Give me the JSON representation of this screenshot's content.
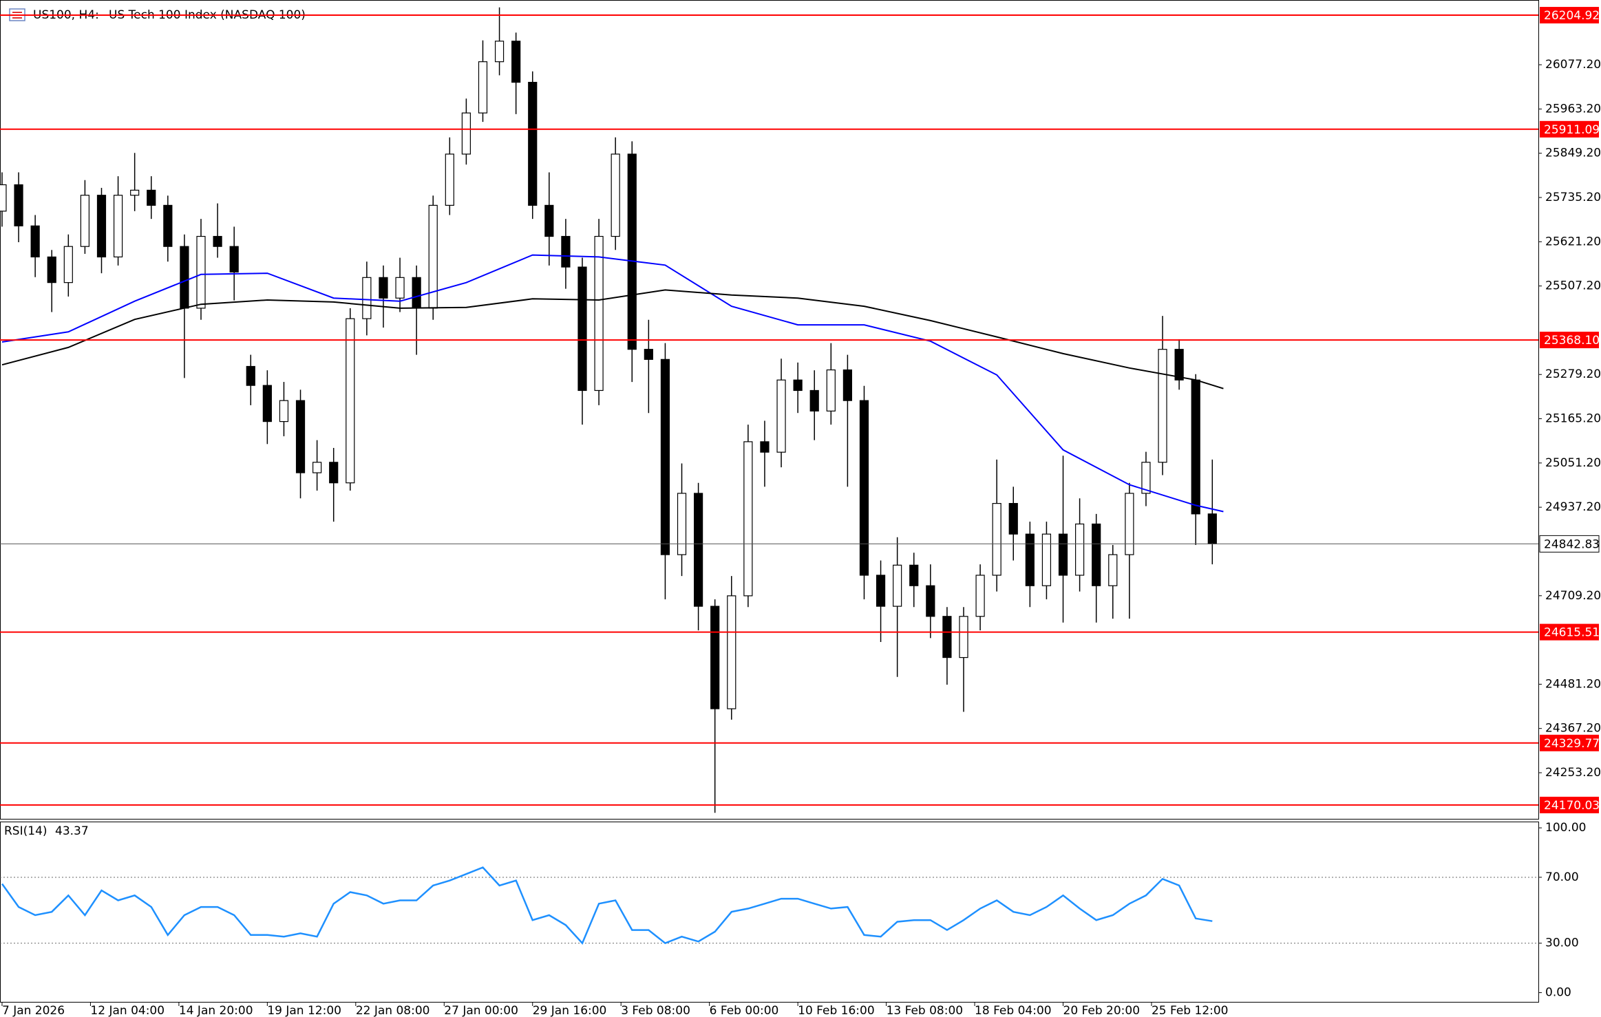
{
  "chart_data": [
    {
      "type": "candlestick",
      "symbol": "US100, H4:",
      "title": "US Tech 100 Index (NASDAQ 100)",
      "x": [
        0,
        3,
        6,
        9,
        12,
        15,
        18,
        21,
        24,
        27,
        30,
        33,
        36,
        39,
        42,
        45,
        48,
        51,
        54,
        57,
        60,
        63,
        66,
        69,
        72,
        75,
        78,
        81,
        84,
        87,
        90,
        93,
        96,
        99,
        102,
        105,
        108,
        111,
        114,
        117,
        120,
        123,
        126,
        129,
        132,
        135,
        138,
        141,
        144,
        147,
        150,
        153,
        156,
        159,
        162,
        165,
        168,
        171,
        174,
        177,
        180,
        183,
        186,
        189,
        192,
        195,
        198,
        201,
        204,
        207,
        210,
        213,
        216,
        219
      ],
      "open": [
        25700,
        25768,
        25662,
        25582,
        25516,
        25609,
        25741,
        25582,
        25741,
        25754,
        25715,
        25609,
        25450,
        25635,
        25609,
        25300,
        25251,
        25158,
        25212,
        25026,
        25053,
        25000,
        25423,
        25529,
        25476,
        25529,
        25450,
        25715,
        25847,
        25953,
        26085,
        26138,
        26032,
        25715,
        25635,
        25556,
        25238,
        25635,
        25847,
        25344,
        25318,
        24815,
        24973,
        24682,
        24418,
        24709,
        25106,
        25079,
        25265,
        25238,
        25185,
        25291,
        25212,
        24762,
        24682,
        24788,
        24735,
        24656,
        24550,
        24656,
        24762,
        24947,
        24868,
        24735,
        24868,
        24762,
        24894,
        24735,
        24815,
        24973,
        25053,
        25344,
        25265,
        24920
      ],
      "high": [
        25800,
        25800,
        25690,
        25600,
        25640,
        25780,
        25760,
        25790,
        25850,
        25790,
        25740,
        25640,
        25680,
        25720,
        25660,
        25330,
        25290,
        25260,
        25240,
        25110,
        25090,
        25450,
        25570,
        25560,
        25580,
        25560,
        25740,
        25890,
        25990,
        26140,
        26225,
        26160,
        26060,
        25800,
        25680,
        25580,
        25680,
        25890,
        25880,
        25420,
        25360,
        25050,
        25000,
        24700,
        24760,
        25150,
        25160,
        25320,
        25310,
        25290,
        25360,
        25330,
        25250,
        24800,
        24860,
        24820,
        24790,
        24680,
        24680,
        24790,
        25060,
        24990,
        24900,
        24900,
        25070,
        24960,
        24920,
        24840,
        25000,
        25080,
        25430,
        25370,
        25280,
        25060
      ],
      "low": [
        25660,
        25620,
        25530,
        25440,
        25480,
        25590,
        25540,
        25560,
        25700,
        25680,
        25570,
        25270,
        25420,
        25580,
        25470,
        25200,
        25100,
        25120,
        24960,
        24980,
        24900,
        24980,
        25380,
        25400,
        25440,
        25330,
        25420,
        25690,
        25820,
        25930,
        26050,
        25950,
        25680,
        25560,
        25500,
        25150,
        25200,
        25600,
        25260,
        25180,
        24700,
        24760,
        24620,
        24150,
        24390,
        24680,
        24990,
        25040,
        25180,
        25110,
        25150,
        24990,
        24700,
        24590,
        24500,
        24680,
        24600,
        24480,
        24410,
        24620,
        24720,
        24800,
        24680,
        24700,
        24640,
        24720,
        24640,
        24650,
        24650,
        24940,
        25020,
        25240,
        24840,
        24790
      ],
      "close": [
        25768,
        25662,
        25582,
        25516,
        25609,
        25741,
        25582,
        25741,
        25754,
        25715,
        25609,
        25450,
        25635,
        25609,
        25543,
        25251,
        25158,
        25212,
        25026,
        25053,
        25000,
        25423,
        25529,
        25476,
        25529,
        25450,
        25715,
        25847,
        25953,
        26085,
        26138,
        26032,
        25715,
        25635,
        25556,
        25238,
        25635,
        25847,
        25344,
        25318,
        24815,
        24973,
        24682,
        24418,
        24709,
        25106,
        25079,
        25265,
        25238,
        25185,
        25291,
        25212,
        24762,
        24682,
        24788,
        24735,
        24656,
        24550,
        24656,
        24762,
        24947,
        24868,
        24735,
        24868,
        24762,
        24894,
        24735,
        24815,
        24973,
        25053,
        25344,
        25265,
        24920,
        24842.83
      ],
      "up_color": "#ffffff",
      "down_color": "#000000",
      "series": [
        {
          "color": "#0000ff",
          "x": [
            0,
            12,
            24,
            36,
            48,
            60,
            72,
            84,
            96,
            108,
            120,
            132,
            144,
            156,
            168,
            180,
            192,
            204,
            216,
            221
          ],
          "values": [
            25363,
            25389,
            25468,
            25537,
            25540,
            25476,
            25468,
            25516,
            25587,
            25582,
            25561,
            25455,
            25407,
            25407,
            25365,
            25278,
            25085,
            24995,
            24942,
            24926
          ]
        },
        {
          "color": "#000000",
          "x": [
            0,
            12,
            24,
            36,
            48,
            60,
            72,
            84,
            96,
            108,
            120,
            132,
            144,
            156,
            168,
            180,
            192,
            204,
            216,
            221
          ],
          "values": [
            25304,
            25349,
            25421,
            25460,
            25471,
            25466,
            25450,
            25452,
            25474,
            25471,
            25497,
            25484,
            25476,
            25455,
            25418,
            25376,
            25333,
            25296,
            25265,
            25243
          ]
        }
      ],
      "levels": [
        26204.92,
        25911.09,
        {
          "value": 25368.1,
          "label": "25368.10"
        },
        24615.51,
        24329.77,
        24170.03
      ],
      "level_color": "#ff0000",
      "last_price": 24842.83,
      "xlim": [
        -0.37,
        278
      ],
      "xticks": [
        {
          "value": 0,
          "label": "7 Jan 2026"
        },
        {
          "value": 16,
          "label": "12 Jan 04:00"
        },
        {
          "value": 32,
          "label": "14 Jan 20:00"
        },
        {
          "value": 48,
          "label": "19 Jan 12:00"
        },
        {
          "value": 64,
          "label": "22 Jan 08:00"
        },
        {
          "value": 80,
          "label": "27 Jan 00:00"
        },
        {
          "value": 96,
          "label": "29 Jan 16:00"
        },
        {
          "value": 112,
          "label": "3 Feb 08:00"
        },
        {
          "value": 128,
          "label": "6 Feb 00:00"
        },
        {
          "value": 144,
          "label": "10 Feb 16:00"
        },
        {
          "value": 160,
          "label": "13 Feb 08:00"
        },
        {
          "value": 176,
          "label": "18 Feb 04:00"
        },
        {
          "value": 192,
          "label": "20 Feb 20:00"
        },
        {
          "value": 208,
          "label": "25 Feb 12:00"
        }
      ],
      "ylim": [
        24134.4,
        26244
      ],
      "yticks": [
        {
          "value": 24253.2,
          "label": "24253.20"
        },
        {
          "value": 24367.2,
          "label": "24367.20"
        },
        {
          "value": 24481.2,
          "label": "24481.20"
        },
        {
          "value": 24709.2,
          "label": "24709.20"
        },
        {
          "value": 24937.2,
          "label": "24937.20"
        },
        {
          "value": 25051.2,
          "label": "25051.20"
        },
        {
          "value": 25165.2,
          "label": "25165.20"
        },
        {
          "value": 25279.2,
          "label": "25279.20"
        },
        {
          "value": 25507.2,
          "label": "25507.20"
        },
        {
          "value": 25621.2,
          "label": "25621.20"
        },
        {
          "value": 25735.2,
          "label": "25735.20"
        },
        {
          "value": 25849.2,
          "label": "25849.20"
        },
        {
          "value": 25963.2,
          "label": "25963.20"
        },
        {
          "value": 26077.2,
          "label": "26077.20"
        }
      ]
    },
    {
      "type": "line",
      "title": "RSI(14)",
      "current": 43.37,
      "color": "#1e90ff",
      "x": [
        0,
        3,
        6,
        9,
        12,
        15,
        18,
        21,
        24,
        27,
        30,
        33,
        36,
        39,
        42,
        45,
        48,
        51,
        54,
        57,
        60,
        63,
        66,
        69,
        72,
        75,
        78,
        81,
        84,
        87,
        90,
        93,
        96,
        99,
        102,
        105,
        108,
        111,
        114,
        117,
        120,
        123,
        126,
        129,
        132,
        135,
        138,
        141,
        144,
        147,
        150,
        153,
        156,
        159,
        162,
        165,
        168,
        171,
        174,
        177,
        180,
        183,
        186,
        189,
        192,
        195,
        198,
        201,
        204,
        207,
        210,
        213,
        216,
        219
      ],
      "values": [
        66,
        52,
        47,
        49,
        59,
        47,
        62,
        56,
        59,
        52,
        35,
        47,
        52,
        52,
        47,
        35,
        35,
        34,
        36,
        34,
        54,
        61,
        59,
        54,
        56,
        56,
        65,
        68,
        72,
        76,
        65,
        68,
        44,
        47,
        41,
        30,
        54,
        56,
        38,
        38,
        30,
        34,
        31,
        37,
        49,
        51,
        54,
        57,
        57,
        54,
        51,
        52,
        35,
        34,
        43,
        44,
        44,
        38,
        44,
        51,
        56,
        49,
        47,
        52,
        59,
        51,
        44,
        47,
        54,
        59,
        69,
        65,
        45,
        43.37
      ],
      "levels": [
        70,
        30
      ],
      "xlim": [
        -0.37,
        278
      ],
      "ylim": [
        -5.6,
        103.8
      ],
      "yticks": [
        {
          "value": 100,
          "label": "100.00"
        },
        {
          "value": 70,
          "label": "70.00"
        },
        {
          "value": 30,
          "label": "30.00"
        },
        {
          "value": 0,
          "label": "0.00"
        }
      ]
    }
  ]
}
